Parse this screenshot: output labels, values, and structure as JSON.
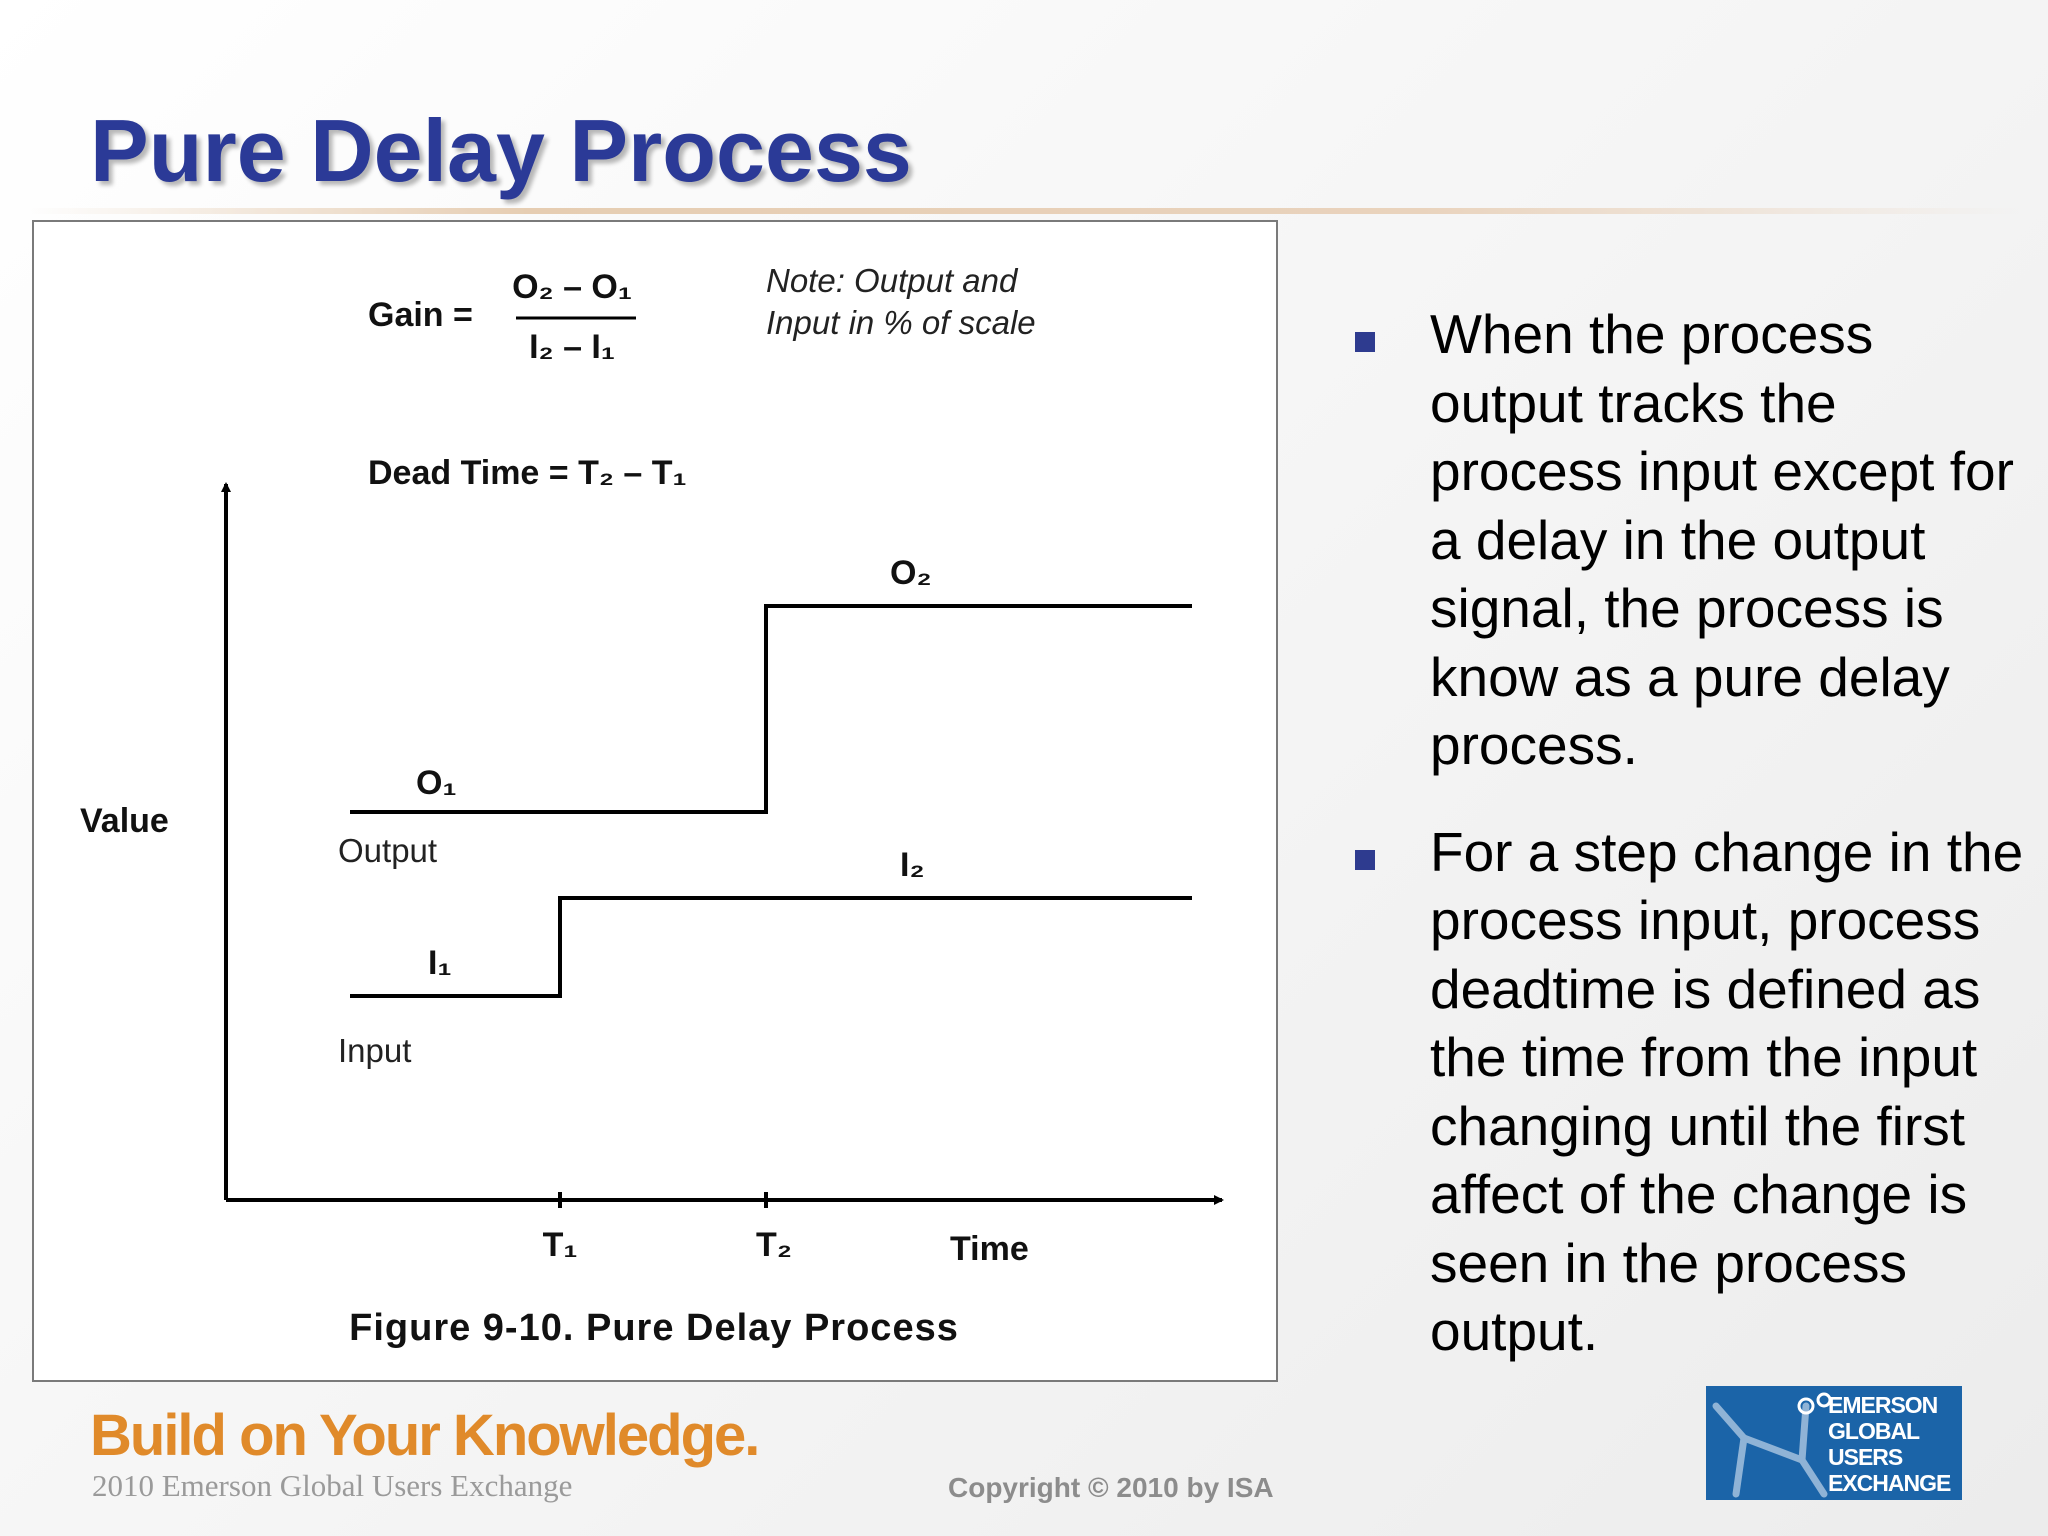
{
  "slide": {
    "title": "Pure Delay Process"
  },
  "figure": {
    "gain_label": "Gain =",
    "gain_numerator": "O₂ – O₁",
    "gain_denominator": "I₂ – I₁",
    "note_line1": "Note:  Output and",
    "note_line2": "Input in % of scale",
    "dead_time": "Dead Time = T₂ – T₁",
    "y_axis_label": "Value",
    "x_axis_label": "Time",
    "t1_label": "T₁",
    "t2_label": "T₂",
    "o1_label": "O₁",
    "o2_label": "O₂",
    "i1_label": "I₁",
    "i2_label": "I₂",
    "output_label": "Output",
    "input_label": "Input",
    "caption": "Figure 9-10. Pure Delay Process"
  },
  "bullets": [
    "When the process output tracks the process input except for a delay in the output signal, the process is know as a pure delay process.",
    "For a step change in the process input, process deadtime is defined as the time from the input changing until the first affect of the change is seen in the process output."
  ],
  "footer": {
    "brand": "Build on Your Knowledge.",
    "sub": "2010 Emerson Global Users Exchange",
    "copyright": "Copyright © 2010 by ISA"
  },
  "logo": {
    "line1": "EMERSON",
    "line2": "GLOBAL",
    "line3": "USERS",
    "line4": "EXCHANGE"
  },
  "colors": {
    "title": "#2b3a97",
    "bullet_marker": "#2e3b8f",
    "brand": "#e08a2a",
    "logo_bg": "#1b64a8"
  }
}
